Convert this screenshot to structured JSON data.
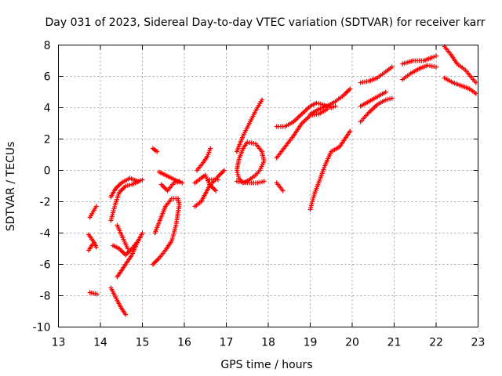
{
  "chart_data": {
    "type": "scatter",
    "title": "Day 031 of 2023, Sidereal Day-to-day VTEC variation (SDTVAR) for receiver karr",
    "xlabel": "GPS time / hours",
    "ylabel": "SDTVAR / TECUs",
    "xlim": [
      13,
      23
    ],
    "ylim": [
      -10,
      8
    ],
    "xticks": [
      13,
      14,
      15,
      16,
      17,
      18,
      19,
      20,
      21,
      22,
      23
    ],
    "yticks": [
      -10,
      -8,
      -6,
      -4,
      -2,
      0,
      2,
      4,
      6,
      8
    ],
    "grid": true,
    "marker": "+",
    "color": "#ff0000",
    "segments": [
      [
        [
          13.75,
          -3.0
        ],
        [
          13.9,
          -2.3
        ]
      ],
      [
        [
          13.72,
          -4.1
        ],
        [
          13.85,
          -4.6
        ],
        [
          13.9,
          -4.9
        ]
      ],
      [
        [
          13.72,
          -5.1
        ],
        [
          13.82,
          -4.7
        ]
      ],
      [
        [
          13.75,
          -7.8
        ],
        [
          13.92,
          -7.9
        ]
      ],
      [
        [
          14.25,
          -3.2
        ],
        [
          14.35,
          -2.2
        ],
        [
          14.45,
          -1.4
        ],
        [
          14.6,
          -1.0
        ],
        [
          14.75,
          -0.9
        ],
        [
          15.0,
          -0.6
        ]
      ],
      [
        [
          14.25,
          -1.7
        ],
        [
          14.35,
          -1.2
        ],
        [
          14.5,
          -0.8
        ],
        [
          14.7,
          -0.5
        ],
        [
          14.9,
          -0.7
        ]
      ],
      [
        [
          14.3,
          -4.8
        ],
        [
          14.45,
          -5.0
        ],
        [
          14.6,
          -5.4
        ],
        [
          14.75,
          -5.0
        ],
        [
          14.9,
          -4.5
        ],
        [
          15.0,
          -4.0
        ]
      ],
      [
        [
          14.4,
          -6.8
        ],
        [
          14.55,
          -6.2
        ],
        [
          14.75,
          -5.4
        ],
        [
          14.9,
          -4.5
        ]
      ],
      [
        [
          14.4,
          -3.5
        ],
        [
          14.55,
          -4.4
        ],
        [
          14.65,
          -5.0
        ]
      ],
      [
        [
          14.25,
          -7.5
        ],
        [
          14.4,
          -8.3
        ],
        [
          14.5,
          -8.8
        ],
        [
          14.6,
          -9.2
        ]
      ],
      [
        [
          15.25,
          1.4
        ],
        [
          15.35,
          1.2
        ]
      ],
      [
        [
          15.25,
          -6.0
        ],
        [
          15.4,
          -5.6
        ],
        [
          15.55,
          -5.1
        ],
        [
          15.7,
          -4.5
        ],
        [
          15.8,
          -3.5
        ],
        [
          15.88,
          -2.2
        ],
        [
          15.85,
          -1.8
        ],
        [
          15.7,
          -1.8
        ],
        [
          15.55,
          -2.3
        ],
        [
          15.4,
          -3.3
        ],
        [
          15.3,
          -4.0
        ]
      ],
      [
        [
          15.45,
          -0.9
        ],
        [
          15.6,
          -1.3
        ],
        [
          15.75,
          -0.8
        ],
        [
          15.88,
          -0.7
        ]
      ],
      [
        [
          15.4,
          -0.1
        ],
        [
          15.55,
          -0.3
        ],
        [
          15.7,
          -0.5
        ],
        [
          15.85,
          -0.7
        ],
        [
          15.95,
          -0.8
        ]
      ],
      [
        [
          16.25,
          -2.3
        ],
        [
          16.4,
          -2.0
        ],
        [
          16.5,
          -1.5
        ],
        [
          16.6,
          -1.0
        ],
        [
          16.7,
          -0.7
        ],
        [
          16.8,
          -0.4
        ],
        [
          16.95,
          0.0
        ]
      ],
      [
        [
          16.25,
          -0.8
        ],
        [
          16.4,
          -0.5
        ],
        [
          16.5,
          -0.3
        ],
        [
          16.6,
          -0.9
        ],
        [
          16.75,
          -1.3
        ]
      ],
      [
        [
          16.3,
          0.0
        ],
        [
          16.45,
          0.5
        ],
        [
          16.55,
          0.9
        ],
        [
          16.62,
          1.4
        ]
      ],
      [
        [
          16.6,
          -0.6
        ],
        [
          16.8,
          -0.6
        ]
      ],
      [
        [
          17.25,
          -0.7
        ],
        [
          17.5,
          -0.8
        ],
        [
          17.75,
          -0.8
        ],
        [
          17.9,
          -0.7
        ]
      ],
      [
        [
          17.3,
          0.7
        ],
        [
          17.4,
          1.4
        ],
        [
          17.5,
          1.8
        ],
        [
          17.7,
          1.7
        ],
        [
          17.85,
          1.2
        ],
        [
          17.9,
          0.6
        ],
        [
          17.8,
          0.0
        ],
        [
          17.7,
          -0.3
        ],
        [
          17.55,
          -0.6
        ],
        [
          17.4,
          -0.8
        ],
        [
          17.3,
          -0.5
        ],
        [
          17.25,
          0.0
        ],
        [
          17.3,
          0.7
        ]
      ],
      [
        [
          17.25,
          1.2
        ],
        [
          17.4,
          2.2
        ],
        [
          17.55,
          3.0
        ],
        [
          17.7,
          3.8
        ],
        [
          17.85,
          4.5
        ]
      ],
      [
        [
          18.2,
          -0.8
        ],
        [
          18.35,
          -1.3
        ]
      ],
      [
        [
          18.2,
          0.8
        ],
        [
          18.4,
          1.5
        ],
        [
          18.6,
          2.2
        ],
        [
          18.8,
          3.0
        ],
        [
          19.0,
          3.5
        ],
        [
          19.2,
          3.6
        ],
        [
          19.4,
          3.9
        ]
      ],
      [
        [
          18.2,
          2.8
        ],
        [
          18.4,
          2.8
        ],
        [
          18.6,
          3.1
        ],
        [
          18.8,
          3.6
        ],
        [
          19.0,
          4.1
        ],
        [
          19.15,
          4.3
        ],
        [
          19.3,
          4.2
        ],
        [
          19.5,
          4.0
        ],
        [
          19.6,
          4.1
        ]
      ],
      [
        [
          19.0,
          -2.5
        ],
        [
          19.1,
          -1.5
        ],
        [
          19.2,
          -0.8
        ],
        [
          19.35,
          0.3
        ],
        [
          19.5,
          1.2
        ],
        [
          19.7,
          1.5
        ],
        [
          19.85,
          2.1
        ],
        [
          19.95,
          2.5
        ]
      ],
      [
        [
          19.0,
          3.6
        ],
        [
          19.2,
          3.9
        ],
        [
          19.4,
          4.1
        ],
        [
          19.6,
          4.4
        ],
        [
          19.8,
          4.8
        ],
        [
          19.95,
          5.2
        ]
      ],
      [
        [
          20.2,
          3.1
        ],
        [
          20.4,
          3.7
        ],
        [
          20.6,
          4.2
        ],
        [
          20.8,
          4.5
        ],
        [
          20.95,
          4.6
        ]
      ],
      [
        [
          20.2,
          4.1
        ],
        [
          20.4,
          4.4
        ],
        [
          20.6,
          4.7
        ],
        [
          20.8,
          5.0
        ]
      ],
      [
        [
          20.2,
          5.6
        ],
        [
          20.4,
          5.7
        ],
        [
          20.6,
          5.9
        ],
        [
          20.8,
          6.3
        ],
        [
          20.95,
          6.6
        ]
      ],
      [
        [
          21.2,
          5.8
        ],
        [
          21.4,
          6.2
        ],
        [
          21.6,
          6.5
        ],
        [
          21.8,
          6.7
        ],
        [
          22.0,
          6.6
        ]
      ],
      [
        [
          21.2,
          6.8
        ],
        [
          21.45,
          7.0
        ],
        [
          21.7,
          7.0
        ],
        [
          21.9,
          7.2
        ],
        [
          22.0,
          7.3
        ]
      ],
      [
        [
          22.2,
          7.9
        ],
        [
          22.35,
          7.4
        ],
        [
          22.5,
          6.8
        ],
        [
          22.7,
          6.4
        ],
        [
          22.85,
          5.9
        ],
        [
          22.95,
          5.6
        ]
      ],
      [
        [
          22.2,
          5.9
        ],
        [
          22.4,
          5.6
        ],
        [
          22.6,
          5.4
        ],
        [
          22.8,
          5.2
        ],
        [
          22.95,
          4.9
        ]
      ]
    ]
  }
}
